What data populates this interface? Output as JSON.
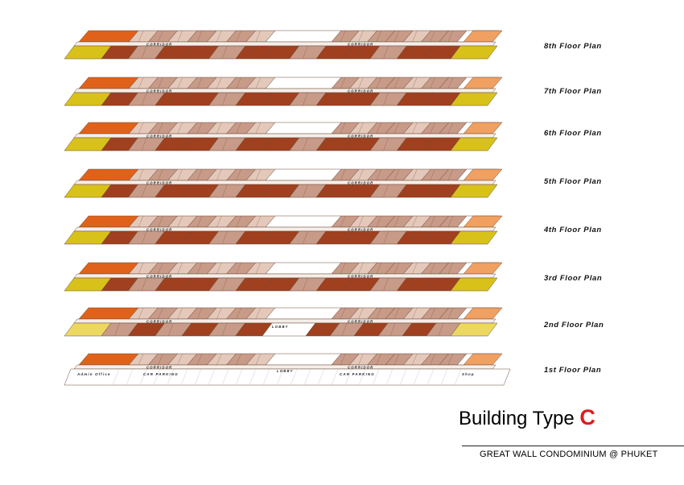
{
  "floors": [
    {
      "id": "8",
      "label": "8th Floor Plan",
      "type": "residential"
    },
    {
      "id": "7",
      "label": "7th Floor Plan",
      "type": "residential"
    },
    {
      "id": "6",
      "label": "6th Floor Plan",
      "type": "residential"
    },
    {
      "id": "5",
      "label": "5th Floor Plan",
      "type": "residential"
    },
    {
      "id": "4",
      "label": "4th Floor Plan",
      "type": "residential"
    },
    {
      "id": "3",
      "label": "3rd Floor Plan",
      "type": "residential"
    },
    {
      "id": "2",
      "label": "2nd Floor Plan",
      "type": "residential-lobby"
    },
    {
      "id": "1",
      "label": "1st Floor Plan",
      "type": "ground"
    }
  ],
  "plan_text": {
    "corridor": "CORRIDOR",
    "lobby": "LOBBY",
    "car_parking": "CAR PARKING",
    "admin_office": "Admin Office",
    "shop": "Shop"
  },
  "colors": {
    "orange_block": "#e0621a",
    "light_orange_block": "#f0a060",
    "yellow_block": "#d8c21a",
    "pale_yellow_block": "#ecd860",
    "rust_block": "#a0401e",
    "pink_brown_block": "#c89a88",
    "light_pink_block": "#e4c8ba",
    "corridor": "#f6eee8",
    "core": "#ffffff"
  },
  "title": {
    "prefix": "Building Type",
    "accent": "C"
  },
  "subtitle": "GREAT WALL CONDOMINIUM @ PHUKET"
}
